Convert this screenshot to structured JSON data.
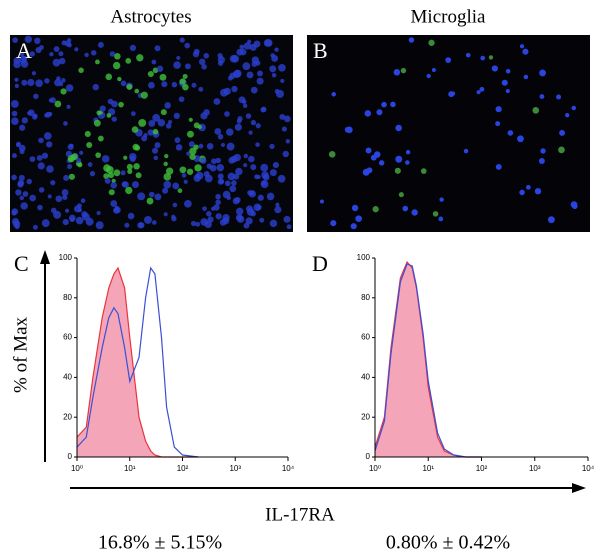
{
  "figure": {
    "columns": [
      "Astrocytes",
      "Microglia"
    ],
    "panel_labels": [
      "A",
      "B",
      "C",
      "D"
    ],
    "y_label": "% of Max",
    "x_label": "IL-17RA",
    "stats": [
      "16.8% ± 5.15%",
      "0.80% ± 0.42%"
    ]
  },
  "chart_data": [
    {
      "type": "area",
      "xscale": "log",
      "xlim": [
        1,
        10000
      ],
      "ylim": [
        0,
        100
      ],
      "xticks": [
        {
          "value": 1,
          "label": "10⁰"
        },
        {
          "value": 10,
          "label": "10¹"
        },
        {
          "value": 100,
          "label": "10²"
        },
        {
          "value": 1000,
          "label": "10³"
        },
        {
          "value": 10000,
          "label": "10⁴"
        }
      ],
      "yticks": [
        0,
        20,
        40,
        60,
        80,
        100
      ],
      "x": [
        1,
        1.5,
        2,
        3,
        4,
        5,
        6,
        8,
        10,
        15,
        20,
        25,
        30,
        40,
        50,
        70,
        100,
        200
      ],
      "series": [
        {
          "color": "#e8343c",
          "fill": "#f4a6b8",
          "values": [
            10,
            15,
            40,
            70,
            85,
            92,
            95,
            85,
            60,
            20,
            8,
            3,
            1,
            0,
            0,
            0,
            0,
            0
          ]
        },
        {
          "color": "#3a4fd8",
          "values": [
            5,
            10,
            30,
            55,
            70,
            75,
            72,
            55,
            38,
            50,
            80,
            95,
            92,
            60,
            25,
            5,
            1,
            0
          ]
        }
      ]
    },
    {
      "type": "area",
      "xscale": "log",
      "xlim": [
        1,
        10000
      ],
      "ylim": [
        0,
        100
      ],
      "xticks": [
        {
          "value": 1,
          "label": "10⁰"
        },
        {
          "value": 10,
          "label": "10¹"
        },
        {
          "value": 100,
          "label": "10²"
        },
        {
          "value": 1000,
          "label": "10³"
        },
        {
          "value": 10000,
          "label": "10⁴"
        }
      ],
      "yticks": [
        0,
        20,
        40,
        60,
        80,
        100
      ],
      "x": [
        1,
        1.5,
        2,
        3,
        4,
        5,
        6,
        8,
        10,
        15,
        20,
        30,
        50,
        100
      ],
      "series": [
        {
          "color": "#e8343c",
          "fill": "#f4a6b8",
          "values": [
            5,
            20,
            55,
            90,
            98,
            95,
            85,
            60,
            35,
            10,
            3,
            1,
            0,
            0
          ]
        },
        {
          "color": "#3a4fd8",
          "values": [
            3,
            18,
            52,
            88,
            97,
            96,
            86,
            62,
            38,
            12,
            4,
            1,
            0,
            0
          ]
        }
      ]
    }
  ]
}
